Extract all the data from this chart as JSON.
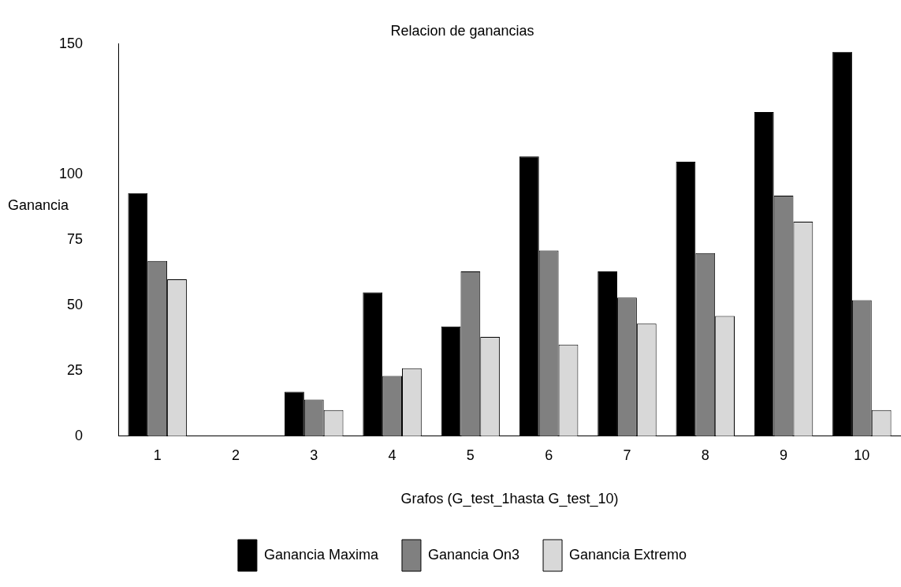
{
  "chart_data": {
    "type": "bar",
    "title": "Relacion de ganancias",
    "xlabel": "Grafos (G_test_1hasta G_test_10)",
    "ylabel": "Ganancia",
    "categories": [
      "1",
      "2",
      "3",
      "4",
      "5",
      "6",
      "7",
      "8",
      "9",
      "10"
    ],
    "series": [
      {
        "name": "Ganancia Maxima",
        "color": "#000000",
        "values": [
          93,
          0,
          17,
          55,
          42,
          107,
          63,
          105,
          124,
          147
        ]
      },
      {
        "name": "Ganancia On3",
        "color": "#808080",
        "values": [
          67,
          0,
          14,
          23,
          63,
          71,
          53,
          70,
          92,
          52
        ]
      },
      {
        "name": "Ganancia Extremo",
        "color": "#d8d8d8",
        "values": [
          60,
          0,
          10,
          26,
          38,
          35,
          43,
          46,
          82,
          10
        ]
      }
    ],
    "ylim": [
      0,
      150
    ],
    "yticks": [
      0,
      25,
      50,
      75,
      100,
      150
    ],
    "grid": false,
    "legend": "bottom"
  }
}
